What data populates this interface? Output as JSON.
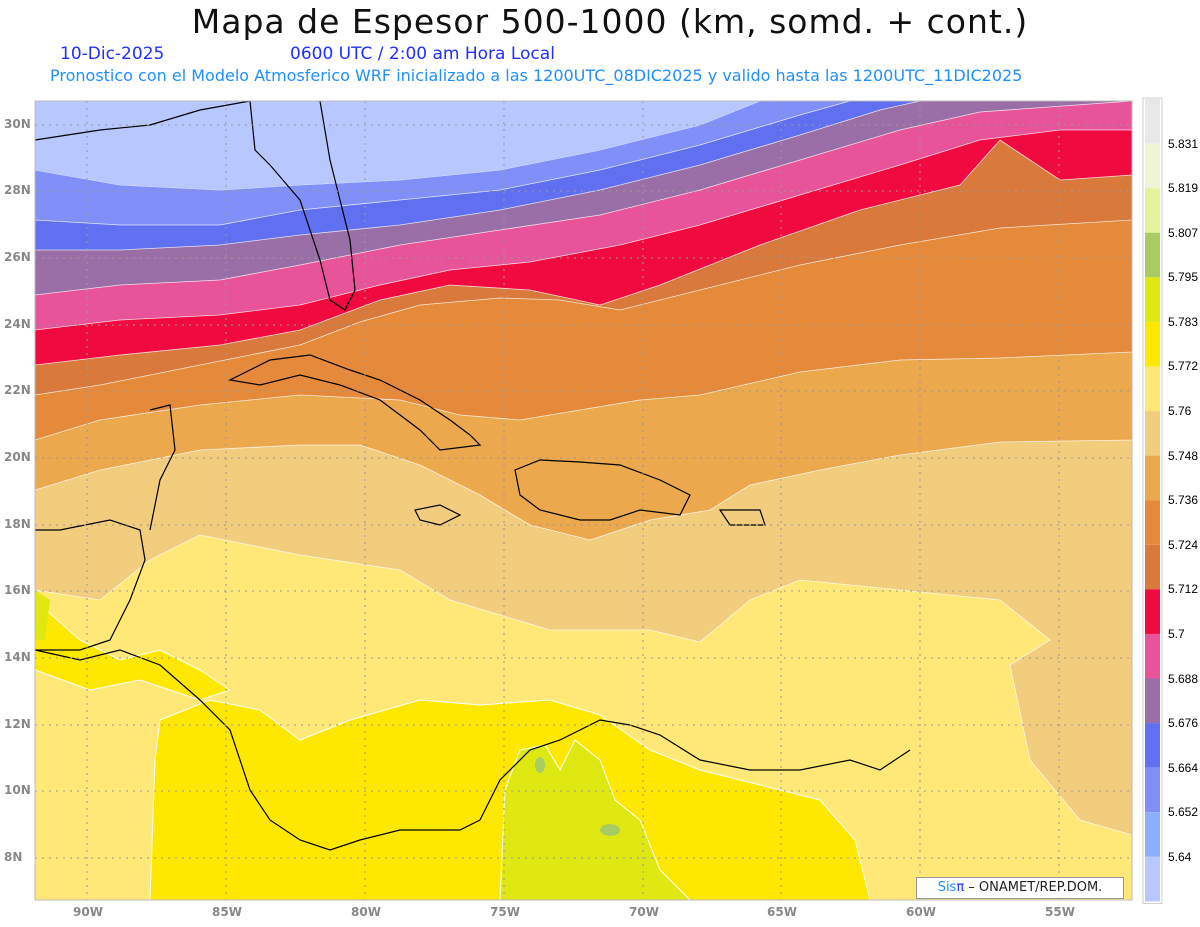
{
  "header": {
    "title": "Mapa de Espesor 500-1000 (km, somd. + cont.)",
    "date": "10-Dic-2025",
    "time": "0600 UTC / 2:00 am Hora Local",
    "description": "Pronostico con el Modelo Atmosferico WRF inicializado a las 1200UTC_08DIC2025 y valido hasta las  1200UTC_11DIC2025"
  },
  "map": {
    "lat_labels": [
      "30N",
      "28N",
      "26N",
      "24N",
      "22N",
      "20N",
      "18N",
      "16N",
      "14N",
      "12N",
      "10N",
      "8N"
    ],
    "lon_labels": [
      "90W",
      "85W",
      "80W",
      "75W",
      "70W",
      "65W",
      "60W",
      "55W"
    ]
  },
  "colorbar": {
    "labels": [
      "5.831",
      "5.819",
      "5.807",
      "5.795",
      "5.783",
      "5.772",
      "5.76",
      "5.748",
      "5.736",
      "5.724",
      "5.712",
      "5.7",
      "5.688",
      "5.676",
      "5.664",
      "5.652",
      "5.64"
    ],
    "colors": [
      "#e8e8e8",
      "#eff5d6",
      "#e4f2a0",
      "#a9cc62",
      "#e0e812",
      "#ffe800",
      "#ffe878",
      "#f2cd7e",
      "#eba84c",
      "#e58a3a",
      "#d97a3c",
      "#f00a40",
      "#e8549a",
      "#9a6ea6",
      "#6070f0",
      "#8090f8",
      "#8cb0ff",
      "#b8c8ff"
    ]
  },
  "watermark": {
    "sis": "Sis",
    "pi": "π",
    "org": " – ONAMET/REP.DOM."
  }
}
